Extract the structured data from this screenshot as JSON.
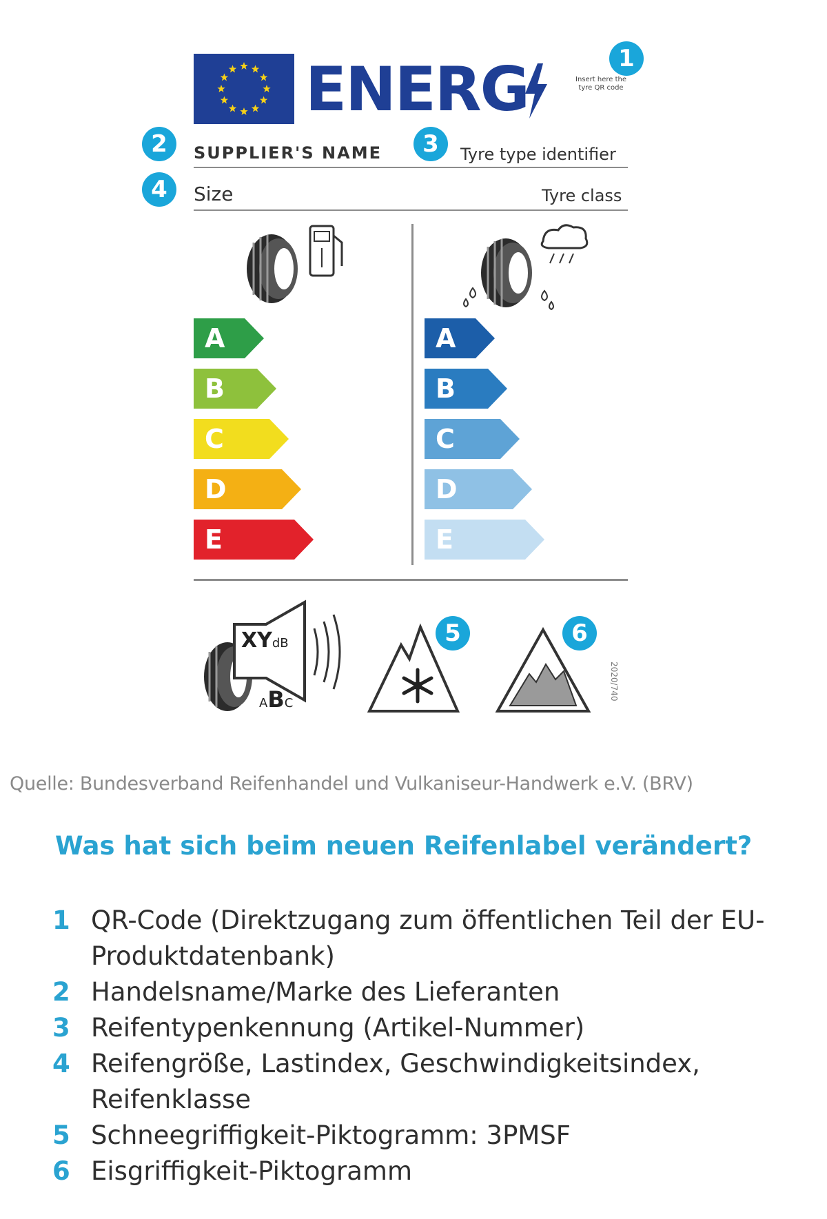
{
  "label": {
    "energy_word": "ENERG",
    "qr_note": "Insert here the tyre QR code",
    "supplier_name": "SUPPLIER'S NAME",
    "tyre_type_identifier": "Tyre type identifier",
    "size": "Size",
    "tyre_class": "Tyre class",
    "badges": [
      "1",
      "2",
      "3",
      "4",
      "5",
      "6"
    ],
    "fuel_scale": {
      "icon": "fuel-efficiency-icon",
      "grades": [
        {
          "letter": "A",
          "color": "#2e9e48"
        },
        {
          "letter": "B",
          "color": "#8ec13c"
        },
        {
          "letter": "C",
          "color": "#f2dd1e"
        },
        {
          "letter": "D",
          "color": "#f4b014"
        },
        {
          "letter": "E",
          "color": "#e2222b"
        }
      ]
    },
    "wet_grip_scale": {
      "icon": "wet-grip-icon",
      "grades": [
        {
          "letter": "A",
          "color": "#1c5ea9"
        },
        {
          "letter": "B",
          "color": "#2a7cc0"
        },
        {
          "letter": "C",
          "color": "#5ea3d6"
        },
        {
          "letter": "D",
          "color": "#8fc1e5"
        },
        {
          "letter": "E",
          "color": "#c3def2"
        }
      ]
    },
    "noise": {
      "value_text": "XY",
      "unit": "dB",
      "classes": [
        "A",
        "B",
        "C"
      ]
    },
    "snow_icon": "3pmsf-snow-icon",
    "ice_icon": "ice-grip-icon",
    "regulation_code": "2020/740"
  },
  "source": "Quelle: Bundesverband Reifenhandel und Vulkaniseur-Handwerk e.V. (BRV)",
  "question": "Was hat sich beim neuen Reifenlabel verändert?",
  "legend": [
    {
      "num": "1",
      "text": "QR-Code (Direktzugang zum öffentlichen Teil der EU-Produktdatenbank)"
    },
    {
      "num": "2",
      "text": "Handelsname/Marke des Lieferanten"
    },
    {
      "num": "3",
      "text": "Reifentypenkennung (Artikel-Nummer)"
    },
    {
      "num": "4",
      "text": "Reifengröße, Lastindex, Geschwindigkeitsindex, Reifenklasse"
    },
    {
      "num": "5",
      "text": "Schneegriffigkeit-Piktogramm: 3PMSF"
    },
    {
      "num": "6",
      "text": "Eisgriffigkeit-Piktogramm"
    }
  ]
}
